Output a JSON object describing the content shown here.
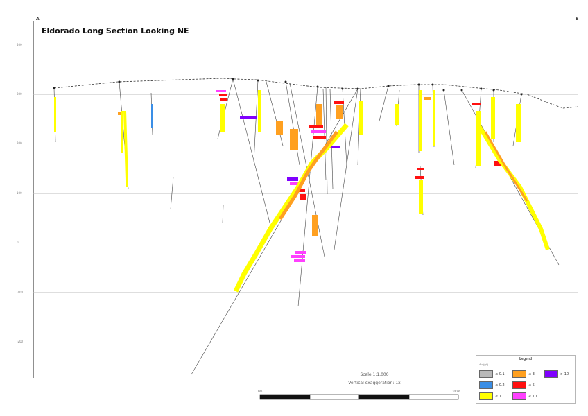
{
  "corners": {
    "left": "A",
    "right": "B"
  },
  "title": "Eldorado Long Section Looking NE",
  "elevation_labels": [
    "400",
    "300",
    "200",
    "100",
    "0",
    "-100",
    "-200"
  ],
  "scale": {
    "text": "Scale 1:1,000",
    "vertical_text": "Vertical exaggeration: 1x",
    "start_label": "0m",
    "end_label": "100m"
  },
  "legend": {
    "title": "Legend",
    "subtitle": "Au (g/t)",
    "items": [
      {
        "label": "≤ 0.1",
        "color": "#b8b8b8"
      },
      {
        "label": "≤ 0.2",
        "color": "#3a8ee6"
      },
      {
        "label": "≤ 1",
        "color": "#ffff00"
      },
      {
        "label": "≤ 3",
        "color": "#ffa020"
      },
      {
        "label": "≤ 5",
        "color": "#ff1010"
      },
      {
        "label": "≤ 10",
        "color": "#ff40ff"
      },
      {
        "label": "> 10",
        "color": "#8000ff"
      }
    ]
  }
}
